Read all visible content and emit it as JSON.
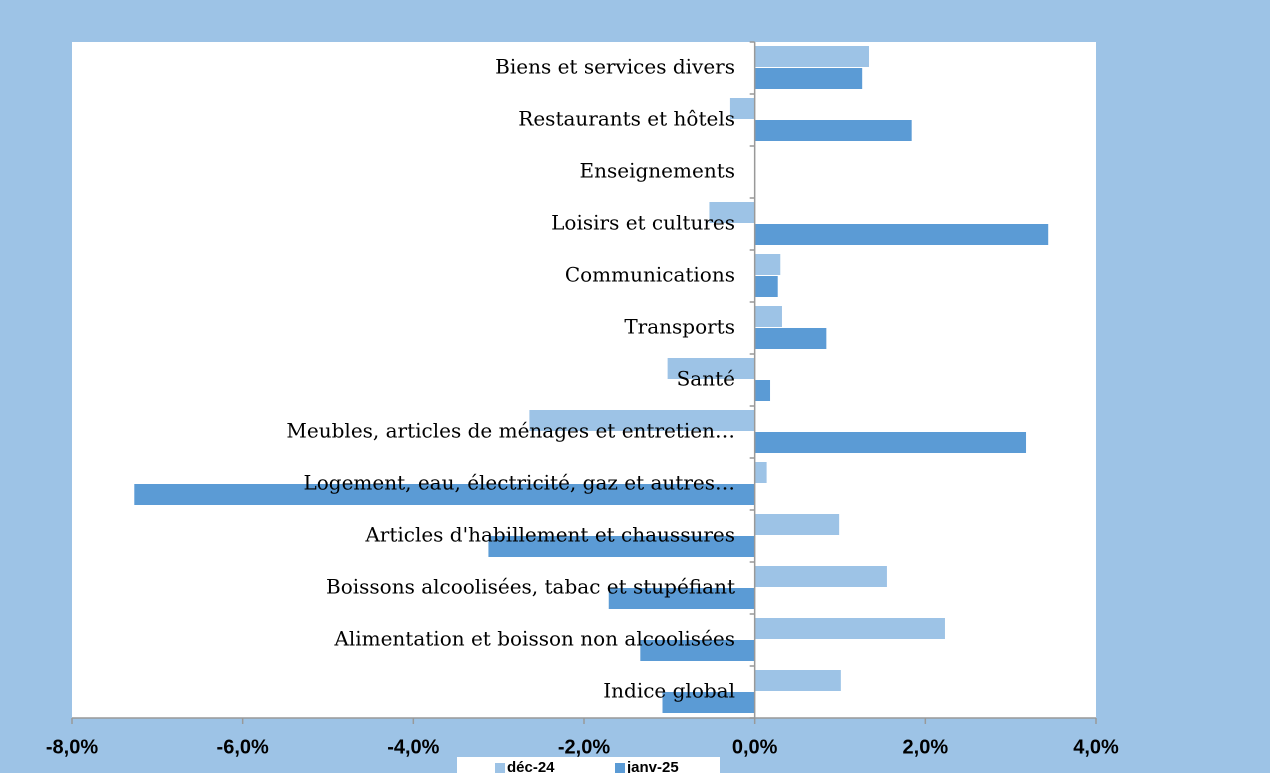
{
  "chart_data": {
    "type": "barh",
    "categories": [
      "Biens et services divers",
      "Restaurants et hôtels",
      "Enseignements",
      "Loisirs et cultures",
      "Communications",
      "Transports",
      "Santé",
      "Meubles, articles de ménages et entretien…",
      "Logement, eau, électricité, gaz et autres…",
      "Articles d'habillement et chaussures",
      "Boissons alcoolisées, tabac et stupéfiant",
      "Alimentation et boisson non alcoolisées",
      "Indice global"
    ],
    "series": [
      {
        "name": "déc-24",
        "color": "#9dc3e6",
        "values": [
          1.34,
          -0.29,
          0,
          -0.53,
          0.3,
          0.32,
          -1.02,
          -2.64,
          0.14,
          0.99,
          1.55,
          2.23,
          1.01
        ]
      },
      {
        "name": "janv-25",
        "color": "#5b9bd5",
        "values": [
          1.26,
          1.84,
          0,
          3.44,
          0.27,
          0.84,
          0.18,
          3.18,
          -7.27,
          -3.12,
          -1.71,
          -1.34,
          -1.08
        ]
      }
    ],
    "xlim": [
      -8,
      4
    ],
    "xticks": [
      {
        "value": -8,
        "label": "-8,0%"
      },
      {
        "value": -6,
        "label": "-6,0%"
      },
      {
        "value": -4,
        "label": "-4,0%"
      },
      {
        "value": -2,
        "label": "-2,0%"
      },
      {
        "value": 0,
        "label": "0,0%"
      },
      {
        "value": 2,
        "label": "2,0%"
      },
      {
        "value": 4,
        "label": "4,0%"
      }
    ],
    "legend": "bottom"
  }
}
